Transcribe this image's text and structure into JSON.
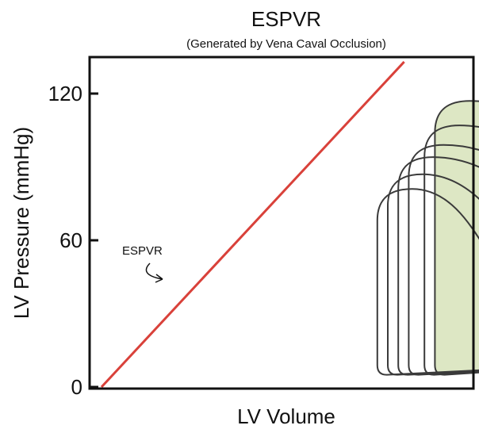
{
  "chart_data": {
    "type": "line",
    "title": "ESPVR",
    "subtitle": "(Generated by Vena Caval Occlusion)",
    "xlabel": "LV Volume",
    "ylabel": "LV Pressure (mmHg)",
    "ylim": [
      0,
      120
    ],
    "yticks": [
      0,
      60,
      120
    ],
    "grid": false,
    "espvr_line": {
      "label": "ESPVR",
      "color": "#d9413a",
      "slope_mmHg_per_unit": 2.3,
      "intercept_x": 0
    },
    "loops": [
      {
        "edv": 53,
        "esv": 60,
        "peak": 81,
        "loop_id": "L1"
      },
      {
        "edv": 55,
        "esv": 63,
        "peak": 87,
        "loop_id": "L2"
      },
      {
        "edv": 57,
        "esv": 67,
        "peak": 94,
        "loop_id": "L3"
      },
      {
        "edv": 59,
        "esv": 70,
        "peak": 99,
        "loop_id": "L4"
      },
      {
        "edv": 62,
        "esv": 73,
        "peak": 107,
        "loop_id": "L5"
      },
      {
        "edv": 64,
        "esv": 77,
        "peak": 117,
        "loop_id": "L6"
      }
    ],
    "loop_style": {
      "stroke": "#3a3a3a",
      "largest_fill": "#dde7c4"
    }
  }
}
